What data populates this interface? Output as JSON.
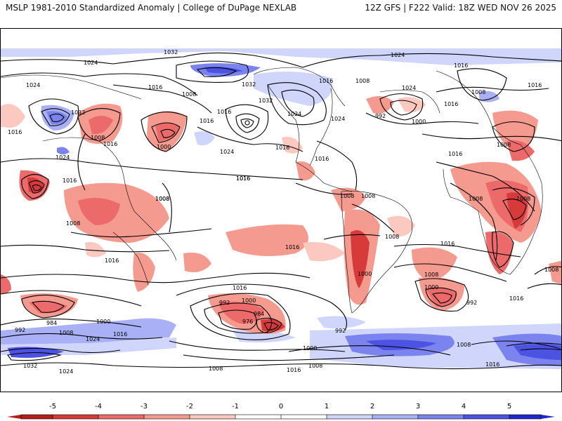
{
  "header": {
    "left": "MSLP 1981-2010 Standardized Anomaly | College of DuPage NEXLAB",
    "right": "12Z GFS | F222 Valid: 18Z WED NOV 26 2025"
  },
  "colorbar": {
    "ticks": [
      "-5",
      "-4",
      "-3",
      "-2",
      "-1",
      "0",
      "1",
      "2",
      "3",
      "4",
      "5"
    ],
    "colors": {
      "neg5": "#b71c1c",
      "neg4": "#d63a3a",
      "neg3": "#ec6a6a",
      "neg2": "#f59a8e",
      "neg1": "#fbc9bf",
      "zero": "#ffffff",
      "pos1": "#cfd5fb",
      "pos2": "#a9b0f6",
      "pos3": "#7b83ee",
      "pos4": "#4c53e2",
      "pos5": "#2228d0"
    }
  },
  "contour_labels": [
    {
      "name": "label-1032-top",
      "text": "1032"
    },
    {
      "name": "label-1024-top",
      "text": "1024"
    },
    {
      "name": "label-1024-nw",
      "text": "1024"
    },
    {
      "name": "label-1024-w",
      "text": "1024"
    },
    {
      "name": "label-1016-nw",
      "text": "1016"
    },
    {
      "name": "label-1008-npac",
      "text": "1008"
    },
    {
      "name": "label-1032-asia",
      "text": "1032"
    },
    {
      "name": "label-1016-asia",
      "text": "1016"
    },
    {
      "name": "label-1008-asia",
      "text": "1008"
    },
    {
      "name": "label-1016-asia2",
      "text": "1016"
    },
    {
      "name": "label-1000-npac",
      "text": "1000"
    },
    {
      "name": "label-1016-npac2",
      "text": "1016"
    },
    {
      "name": "label-1024-npac",
      "text": "1024"
    },
    {
      "name": "label-1024-asia2",
      "text": "1024"
    },
    {
      "name": "label-1016-ind",
      "text": "1016"
    },
    {
      "name": "label-1008-ind",
      "text": "1008"
    },
    {
      "name": "label-1016-spac",
      "text": "1016"
    },
    {
      "name": "label-1008-aus",
      "text": "1008"
    },
    {
      "name": "label-1016-aus",
      "text": "1016"
    },
    {
      "name": "label-1032-canada",
      "text": "1032"
    },
    {
      "name": "label-1016-alaska",
      "text": "1016"
    },
    {
      "name": "label-1032-greenland",
      "text": "1032"
    },
    {
      "name": "label-1016-greenland",
      "text": "1016"
    },
    {
      "name": "label-1008-natl",
      "text": "1008"
    },
    {
      "name": "label-1024-natl",
      "text": "1024"
    },
    {
      "name": "label-1016-natl",
      "text": "1016"
    },
    {
      "name": "label-1024-eus",
      "text": "1024"
    },
    {
      "name": "label-1016-gulf",
      "text": "1016"
    },
    {
      "name": "label-1016-epac",
      "text": "1016"
    },
    {
      "name": "label-1008-itcz",
      "text": "1008"
    },
    {
      "name": "label-1008-sam",
      "text": "1008"
    },
    {
      "name": "label-1008-sam2",
      "text": "1008"
    },
    {
      "name": "label-1008-sam3",
      "text": "1008"
    },
    {
      "name": "label-1016-spac2",
      "text": "1016"
    },
    {
      "name": "label-1000-sam",
      "text": "1000"
    },
    {
      "name": "label-1016-satl",
      "text": "1016"
    },
    {
      "name": "label-1008-satl",
      "text": "1008"
    },
    {
      "name": "label-1000-satl",
      "text": "1000"
    },
    {
      "name": "label-992-satl",
      "text": "992"
    },
    {
      "name": "label-1016-sind",
      "text": "1016"
    },
    {
      "name": "label-1016-eur",
      "text": "1016"
    },
    {
      "name": "label-1024-eur",
      "text": "1024"
    },
    {
      "name": "label-992-eur",
      "text": "992"
    },
    {
      "name": "label-1000-eur",
      "text": "1000"
    },
    {
      "name": "label-1016-eur2",
      "text": "1016"
    },
    {
      "name": "label-1008-eur",
      "text": "1008"
    },
    {
      "name": "label-1008-eur2",
      "text": "1008"
    },
    {
      "name": "label-1016-ru",
      "text": "1016"
    },
    {
      "name": "label-1016-afr",
      "text": "1016"
    },
    {
      "name": "label-1008-afr",
      "text": "1008"
    },
    {
      "name": "label-1008-afr2",
      "text": "1008"
    },
    {
      "name": "label-1008-far-right",
      "text": "1008"
    },
    {
      "name": "label-1016-far-right",
      "text": "1016"
    },
    {
      "name": "label-992-sw",
      "text": "992"
    },
    {
      "name": "label-984-sw",
      "text": "984"
    },
    {
      "name": "label-1000-sw",
      "text": "1000"
    },
    {
      "name": "label-1008-sw",
      "text": "1008"
    },
    {
      "name": "label-1024-sw",
      "text": "1024"
    },
    {
      "name": "label-1016-sw",
      "text": "1016"
    },
    {
      "name": "label-1032-sw",
      "text": "1032"
    },
    {
      "name": "label-1024-sw2",
      "text": "1024"
    },
    {
      "name": "label-992-spac",
      "text": "992"
    },
    {
      "name": "label-1000-spac",
      "text": "1000"
    },
    {
      "name": "label-984-spac",
      "text": "984"
    },
    {
      "name": "label-976-spac",
      "text": "976"
    },
    {
      "name": "label-992-spac2",
      "text": "992"
    },
    {
      "name": "label-1000-spac2",
      "text": "1000"
    },
    {
      "name": "label-1008-spac3",
      "text": "1008"
    },
    {
      "name": "label-1016-spac4",
      "text": "1016"
    },
    {
      "name": "label-1008-soc",
      "text": "1008"
    },
    {
      "name": "label-1008-soc2",
      "text": "1008"
    },
    {
      "name": "label-1016-soc",
      "text": "1016"
    }
  ]
}
